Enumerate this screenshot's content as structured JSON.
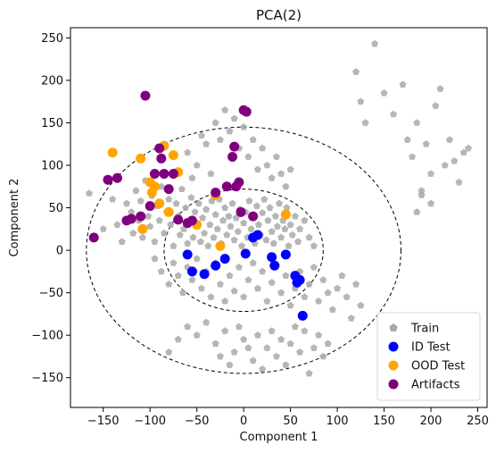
{
  "chart_data": {
    "type": "scatter",
    "title": "PCA(2)",
    "xlabel": "Component 1",
    "ylabel": "Component 2",
    "xlim": [
      -185,
      260
    ],
    "ylim": [
      -185,
      262
    ],
    "xticks": [
      -150,
      -100,
      -50,
      0,
      50,
      100,
      150,
      200,
      250
    ],
    "yticks": [
      -150,
      -100,
      -50,
      0,
      50,
      100,
      150,
      200,
      250
    ],
    "grid": false,
    "legend_position": "bottom-right",
    "ellipses": [
      {
        "center": [
          0,
          0
        ],
        "rx": 85,
        "ry": 72,
        "style": "dashed"
      },
      {
        "center": [
          0,
          0
        ],
        "rx": 168,
        "ry": 145,
        "style": "dashed"
      }
    ],
    "series": [
      {
        "name": "Train",
        "color": "#a9a9a9",
        "marker": "pentagon",
        "points": [
          [
            -165,
            67
          ],
          [
            -150,
            25
          ],
          [
            -140,
            60
          ],
          [
            -135,
            30
          ],
          [
            -130,
            10
          ],
          [
            -125,
            55
          ],
          [
            -120,
            45
          ],
          [
            -118,
            20
          ],
          [
            -115,
            70
          ],
          [
            -112,
            35
          ],
          [
            -110,
            58
          ],
          [
            -108,
            15
          ],
          [
            -105,
            82
          ],
          [
            -102,
            40
          ],
          [
            -100,
            28
          ],
          [
            -98,
            64
          ],
          [
            -95,
            10
          ],
          [
            -92,
            52
          ],
          [
            -90,
            35
          ],
          [
            -88,
            75
          ],
          [
            -85,
            20
          ],
          [
            -82,
            45
          ],
          [
            -80,
            60
          ],
          [
            -78,
            30
          ],
          [
            -75,
            5
          ],
          [
            -72,
            55
          ],
          [
            -70,
            40
          ],
          [
            -68,
            18
          ],
          [
            -66,
            72
          ],
          [
            -64,
            25
          ],
          [
            -62,
            50
          ],
          [
            -60,
            8
          ],
          [
            -58,
            35
          ],
          [
            -56,
            62
          ],
          [
            -54,
            15
          ],
          [
            -52,
            45
          ],
          [
            -50,
            28
          ],
          [
            -48,
            55
          ],
          [
            -46,
            10
          ],
          [
            -44,
            38
          ],
          [
            -42,
            20
          ],
          [
            -40,
            48
          ],
          [
            -38,
            5
          ],
          [
            -36,
            30
          ],
          [
            -34,
            58
          ],
          [
            -32,
            15
          ],
          [
            -30,
            42
          ],
          [
            -28,
            25
          ],
          [
            -26,
            60
          ],
          [
            -24,
            8
          ],
          [
            -22,
            35
          ],
          [
            -20,
            50
          ],
          [
            -18,
            18
          ],
          [
            -16,
            40
          ],
          [
            -14,
            28
          ],
          [
            -12,
            55
          ],
          [
            -10,
            12
          ],
          [
            -8,
            38
          ],
          [
            -6,
            22
          ],
          [
            -4,
            48
          ],
          [
            -2,
            5
          ],
          [
            0,
            32
          ],
          [
            2,
            45
          ],
          [
            4,
            15
          ],
          [
            6,
            58
          ],
          [
            8,
            25
          ],
          [
            10,
            40
          ],
          [
            12,
            8
          ],
          [
            14,
            52
          ],
          [
            16,
            30
          ],
          [
            18,
            18
          ],
          [
            20,
            44
          ],
          [
            22,
            60
          ],
          [
            24,
            12
          ],
          [
            26,
            35
          ],
          [
            28,
            50
          ],
          [
            30,
            22
          ],
          [
            32,
            8
          ],
          [
            34,
            40
          ],
          [
            36,
            28
          ],
          [
            38,
            55
          ],
          [
            40,
            15
          ],
          [
            42,
            35
          ],
          [
            44,
            25
          ],
          [
            46,
            50
          ],
          [
            48,
            5
          ],
          [
            50,
            30
          ],
          [
            52,
            18
          ],
          [
            55,
            40
          ],
          [
            58,
            10
          ],
          [
            60,
            25
          ],
          [
            65,
            35
          ],
          [
            70,
            15
          ],
          [
            75,
            5
          ],
          [
            -95,
            -10
          ],
          [
            -88,
            -25
          ],
          [
            -80,
            -40
          ],
          [
            -75,
            -15
          ],
          [
            -70,
            -30
          ],
          [
            -65,
            -50
          ],
          [
            -60,
            -20
          ],
          [
            -55,
            -35
          ],
          [
            -50,
            -10
          ],
          [
            -45,
            -45
          ],
          [
            -40,
            -25
          ],
          [
            -35,
            -55
          ],
          [
            -30,
            -15
          ],
          [
            -25,
            -40
          ],
          [
            -20,
            -60
          ],
          [
            -15,
            -30
          ],
          [
            -10,
            -48
          ],
          [
            -5,
            -20
          ],
          [
            0,
            -55
          ],
          [
            5,
            -35
          ],
          [
            10,
            -15
          ],
          [
            15,
            -45
          ],
          [
            20,
            -25
          ],
          [
            25,
            -60
          ],
          [
            30,
            -38
          ],
          [
            35,
            -18
          ],
          [
            40,
            -50
          ],
          [
            45,
            -30
          ],
          [
            50,
            -65
          ],
          [
            55,
            -45
          ],
          [
            60,
            -25
          ],
          [
            65,
            -55
          ],
          [
            70,
            -40
          ],
          [
            75,
            -20
          ],
          [
            80,
            -60
          ],
          [
            85,
            -35
          ],
          [
            90,
            -50
          ],
          [
            95,
            -70
          ],
          [
            100,
            -45
          ],
          [
            105,
            -30
          ],
          [
            110,
            -55
          ],
          [
            115,
            -80
          ],
          [
            120,
            -40
          ],
          [
            125,
            -65
          ],
          [
            -60,
            -90
          ],
          [
            -50,
            -100
          ],
          [
            -40,
            -85
          ],
          [
            -30,
            -110
          ],
          [
            -20,
            -95
          ],
          [
            -10,
            -120
          ],
          [
            0,
            -105
          ],
          [
            5,
            -115
          ],
          [
            -5,
            -90
          ],
          [
            10,
            -130
          ],
          [
            15,
            -100
          ],
          [
            20,
            -140
          ],
          [
            25,
            -115
          ],
          [
            30,
            -95
          ],
          [
            35,
            -125
          ],
          [
            40,
            -105
          ],
          [
            45,
            -135
          ],
          [
            50,
            -110
          ],
          [
            55,
            -90
          ],
          [
            60,
            -120
          ],
          [
            65,
            -95
          ],
          [
            70,
            -145
          ],
          [
            75,
            -115
          ],
          [
            80,
            -100
          ],
          [
            85,
            -125
          ],
          [
            90,
            -110
          ],
          [
            -70,
            -105
          ],
          [
            -80,
            -120
          ],
          [
            -15,
            -135
          ],
          [
            -25,
            -125
          ],
          [
            -30,
            150
          ],
          [
            -25,
            130
          ],
          [
            -20,
            165
          ],
          [
            -15,
            140
          ],
          [
            -10,
            155
          ],
          [
            -5,
            120
          ],
          [
            0,
            145
          ],
          [
            5,
            110
          ],
          [
            10,
            130
          ],
          [
            15,
            95
          ],
          [
            20,
            120
          ],
          [
            25,
            100
          ],
          [
            30,
            85
          ],
          [
            35,
            110
          ],
          [
            40,
            90
          ],
          [
            45,
            75
          ],
          [
            50,
            95
          ],
          [
            -60,
            115
          ],
          [
            -50,
            100
          ],
          [
            -40,
            125
          ],
          [
            -35,
            90
          ],
          [
            -45,
            135
          ],
          [
            -55,
            85
          ],
          [
            120,
            210
          ],
          [
            140,
            243
          ],
          [
            125,
            175
          ],
          [
            130,
            150
          ],
          [
            150,
            185
          ],
          [
            160,
            160
          ],
          [
            170,
            195
          ],
          [
            175,
            130
          ],
          [
            180,
            110
          ],
          [
            185,
            150
          ],
          [
            190,
            70
          ],
          [
            195,
            125
          ],
          [
            200,
            90
          ],
          [
            205,
            170
          ],
          [
            210,
            190
          ],
          [
            215,
            100
          ],
          [
            220,
            130
          ],
          [
            225,
            105
          ],
          [
            230,
            80
          ],
          [
            235,
            115
          ],
          [
            240,
            120
          ],
          [
            190,
            65
          ],
          [
            185,
            45
          ],
          [
            200,
            55
          ]
        ]
      },
      {
        "name": "ID Test",
        "color": "#0000ff",
        "marker": "circle",
        "points": [
          [
            -60,
            -5
          ],
          [
            -55,
            -25
          ],
          [
            -42,
            -28
          ],
          [
            -30,
            -18
          ],
          [
            -20,
            -10
          ],
          [
            2,
            -4
          ],
          [
            10,
            15
          ],
          [
            15,
            18
          ],
          [
            30,
            -8
          ],
          [
            33,
            -18
          ],
          [
            45,
            -5
          ],
          [
            55,
            -30
          ],
          [
            57,
            -38
          ],
          [
            60,
            -35
          ],
          [
            63,
            -77
          ]
        ]
      },
      {
        "name": "OOD Test",
        "color": "#ffa500",
        "marker": "circle",
        "points": [
          [
            -140,
            115
          ],
          [
            -110,
            108
          ],
          [
            -108,
            25
          ],
          [
            -100,
            80
          ],
          [
            -98,
            68
          ],
          [
            -95,
            75
          ],
          [
            -90,
            55
          ],
          [
            -85,
            123
          ],
          [
            -80,
            45
          ],
          [
            -75,
            112
          ],
          [
            -70,
            92
          ],
          [
            -50,
            30
          ],
          [
            -30,
            65
          ],
          [
            -25,
            5
          ],
          [
            45,
            42
          ]
        ]
      },
      {
        "name": "Artifacts",
        "color": "#7f007f",
        "marker": "circle",
        "points": [
          [
            -160,
            15
          ],
          [
            -145,
            83
          ],
          [
            -135,
            85
          ],
          [
            -125,
            35
          ],
          [
            -120,
            37
          ],
          [
            -110,
            40
          ],
          [
            -105,
            182
          ],
          [
            -100,
            52
          ],
          [
            -95,
            90
          ],
          [
            -90,
            120
          ],
          [
            -88,
            108
          ],
          [
            -85,
            90
          ],
          [
            -80,
            72
          ],
          [
            -75,
            90
          ],
          [
            -70,
            36
          ],
          [
            -60,
            32
          ],
          [
            -55,
            35
          ],
          [
            -30,
            68
          ],
          [
            -18,
            75
          ],
          [
            -12,
            110
          ],
          [
            -10,
            122
          ],
          [
            -8,
            75
          ],
          [
            -5,
            80
          ],
          [
            -3,
            45
          ],
          [
            0,
            165
          ],
          [
            3,
            163
          ],
          [
            10,
            40
          ]
        ]
      }
    ]
  }
}
